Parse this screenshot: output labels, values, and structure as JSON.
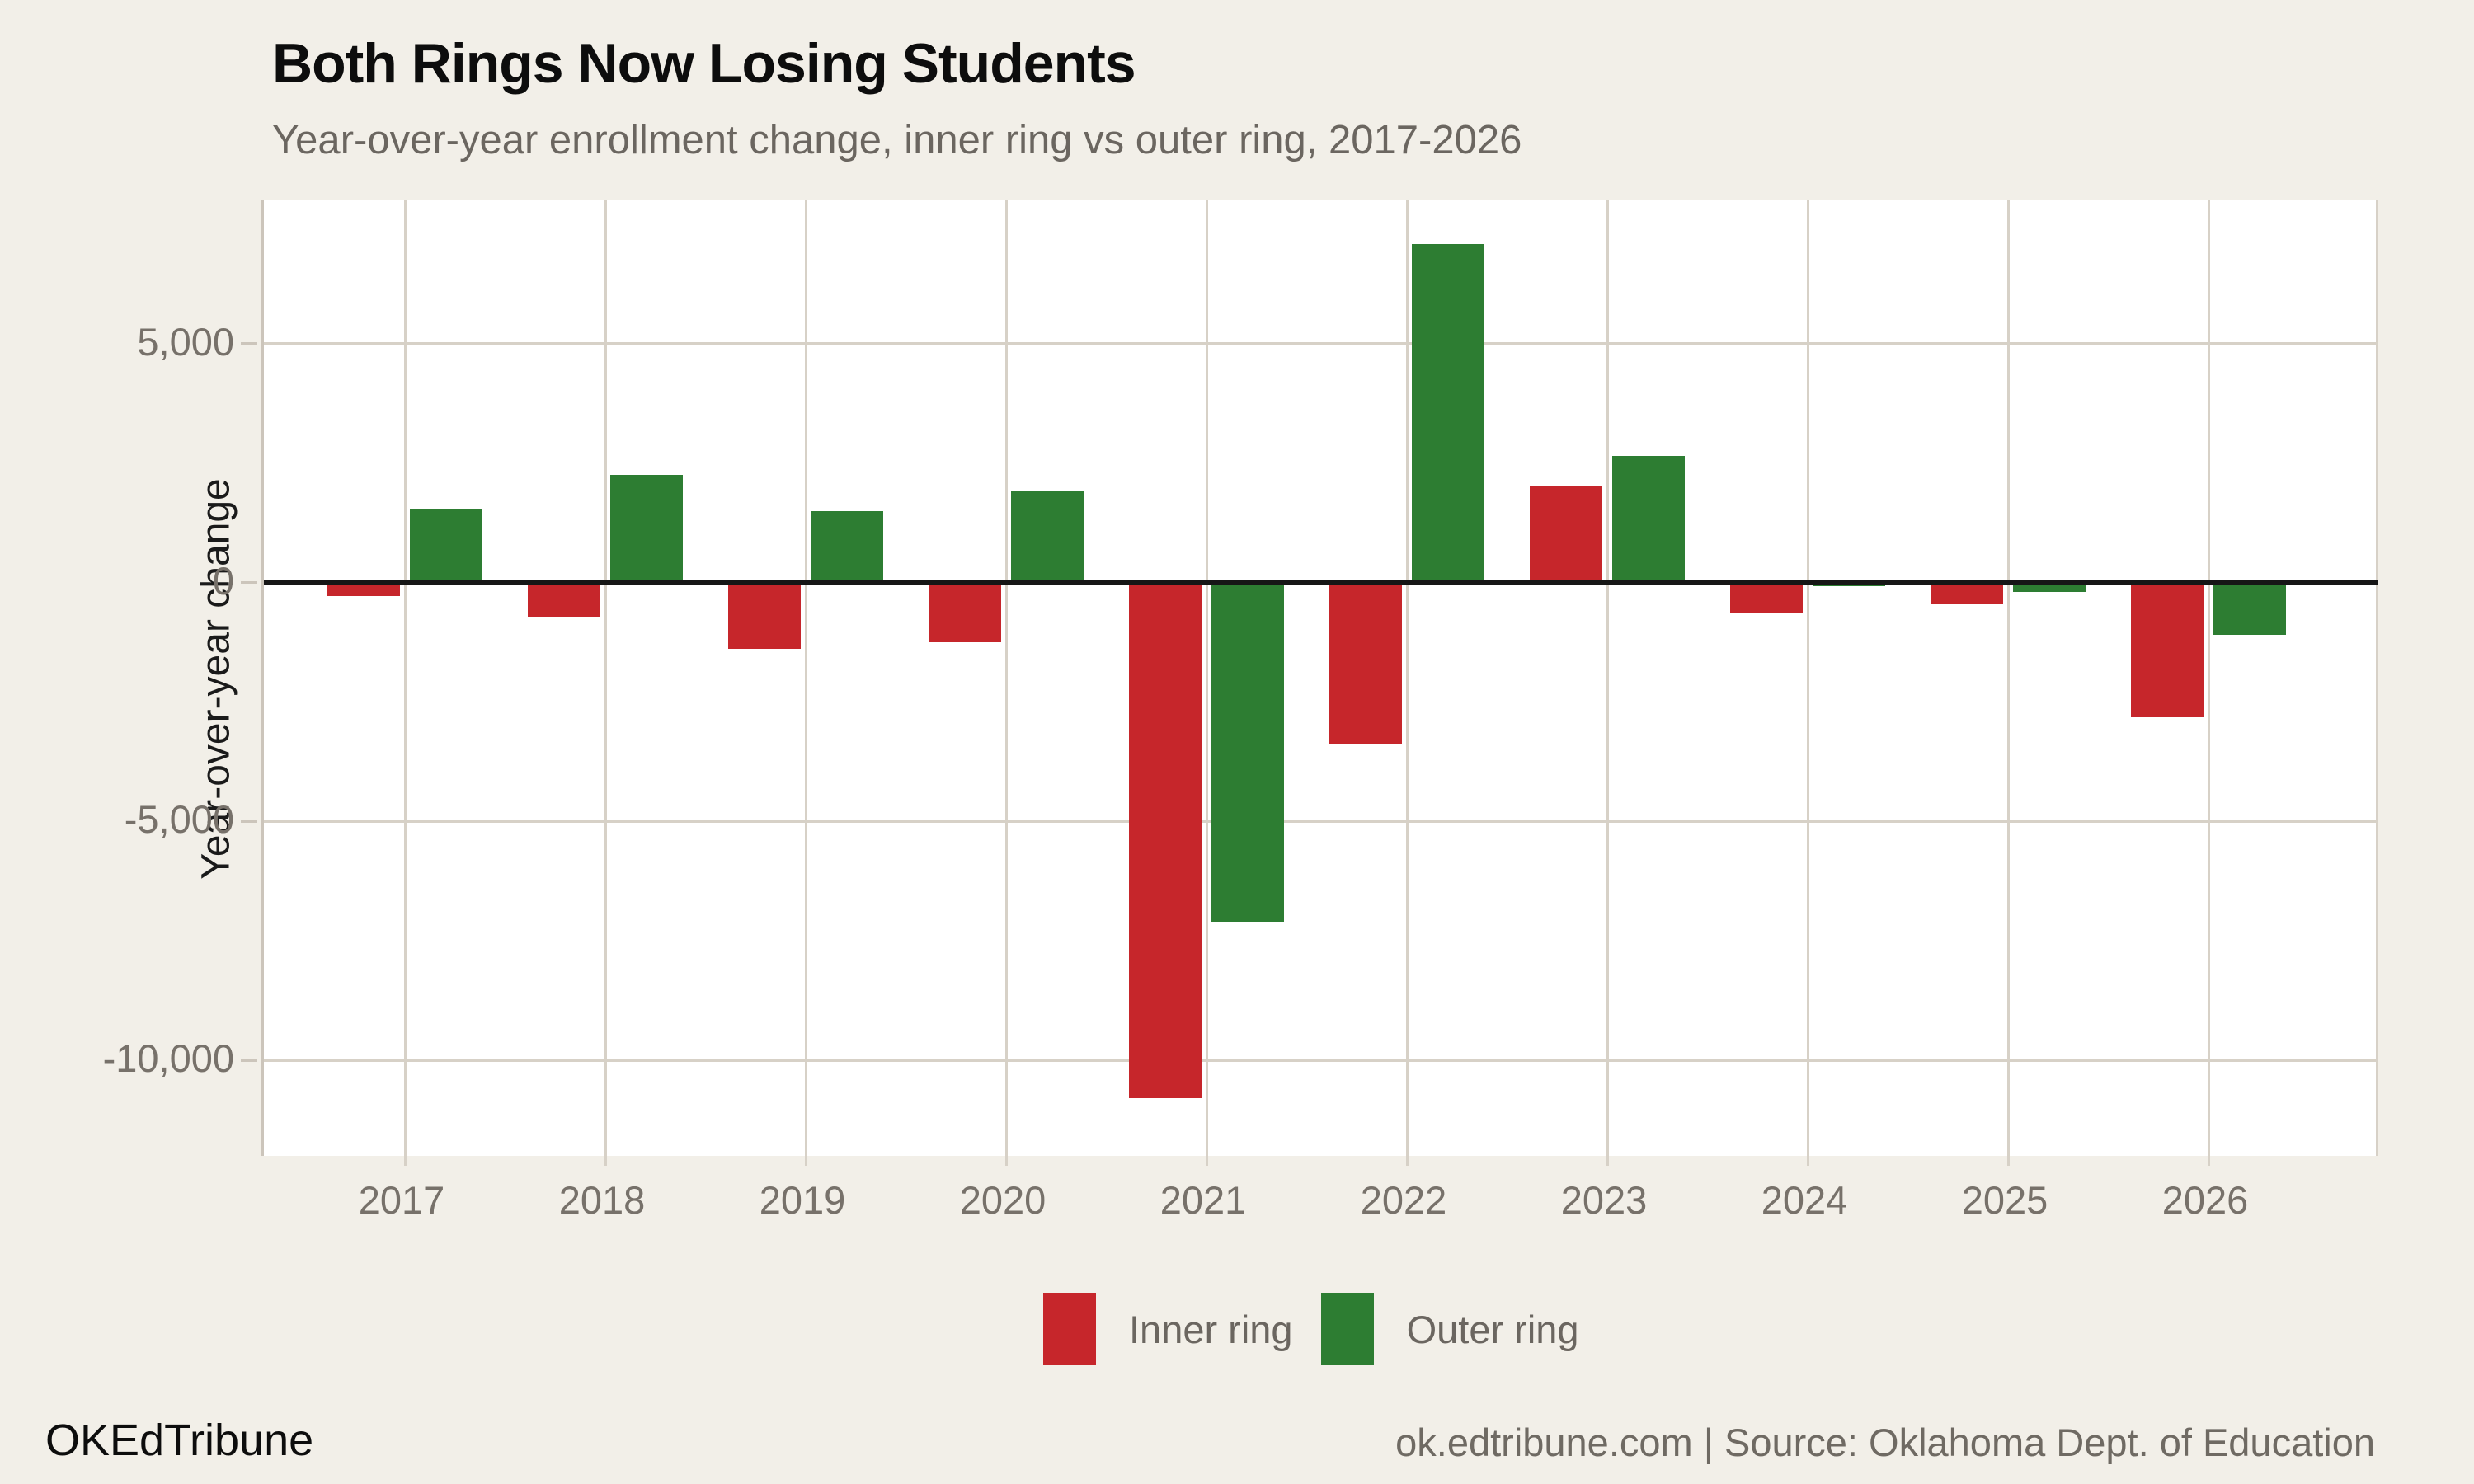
{
  "header": {
    "title": "Both Rings Now Losing Students",
    "subtitle": "Year-over-year enrollment change, inner ring vs outer ring, 2017-2026"
  },
  "chart_data": {
    "type": "bar",
    "title": "Both Rings Now Losing Students",
    "subtitle": "Year-over-year enrollment change, inner ring vs outer ring, 2017-2026",
    "categories": [
      "2017",
      "2018",
      "2019",
      "2020",
      "2021",
      "2022",
      "2023",
      "2024",
      "2025",
      "2026"
    ],
    "series": [
      {
        "name": "Inner ring",
        "color": "#c6262b",
        "values": [
          -280,
          -720,
          -1390,
          -1250,
          -10800,
          -3370,
          2030,
          -650,
          -460,
          -2820
        ]
      },
      {
        "name": "Outer ring",
        "color": "#2d7d32",
        "values": [
          1550,
          2260,
          1500,
          1900,
          -7100,
          7090,
          2650,
          -80,
          -200,
          -1090
        ]
      }
    ],
    "ylim": [
      -12000,
      8000
    ],
    "grid": "on",
    "legend_position": "bottom",
    "y_axis": {
      "title": "Year-over-year change",
      "ticks": [
        {
          "label": "5,000",
          "value": 5000
        },
        {
          "label": "0",
          "value": 0
        },
        {
          "label": "-5,000",
          "value": -5000
        },
        {
          "label": "-10,000",
          "value": -10000
        }
      ]
    },
    "x_axis": {
      "title": ""
    }
  },
  "legend": {
    "items": [
      {
        "label": "Inner ring",
        "color": "#c6262b"
      },
      {
        "label": "Outer ring",
        "color": "#2d7d32"
      }
    ]
  },
  "footer": {
    "brand": "OKEdTribune",
    "attribution": "ok.edtribune.com | Source: Oklahoma Dept. of Education"
  },
  "colors": {
    "background": "#f2efe8",
    "plot_background": "#ffffff",
    "inner_ring": "#c6262b",
    "outer_ring": "#2d7d32",
    "gridline": "#d7d1c7",
    "axis_line": "#ccc5bb",
    "zero_line": "#161616",
    "tick_text": "#77716a",
    "muted_text": "#6b6660"
  }
}
